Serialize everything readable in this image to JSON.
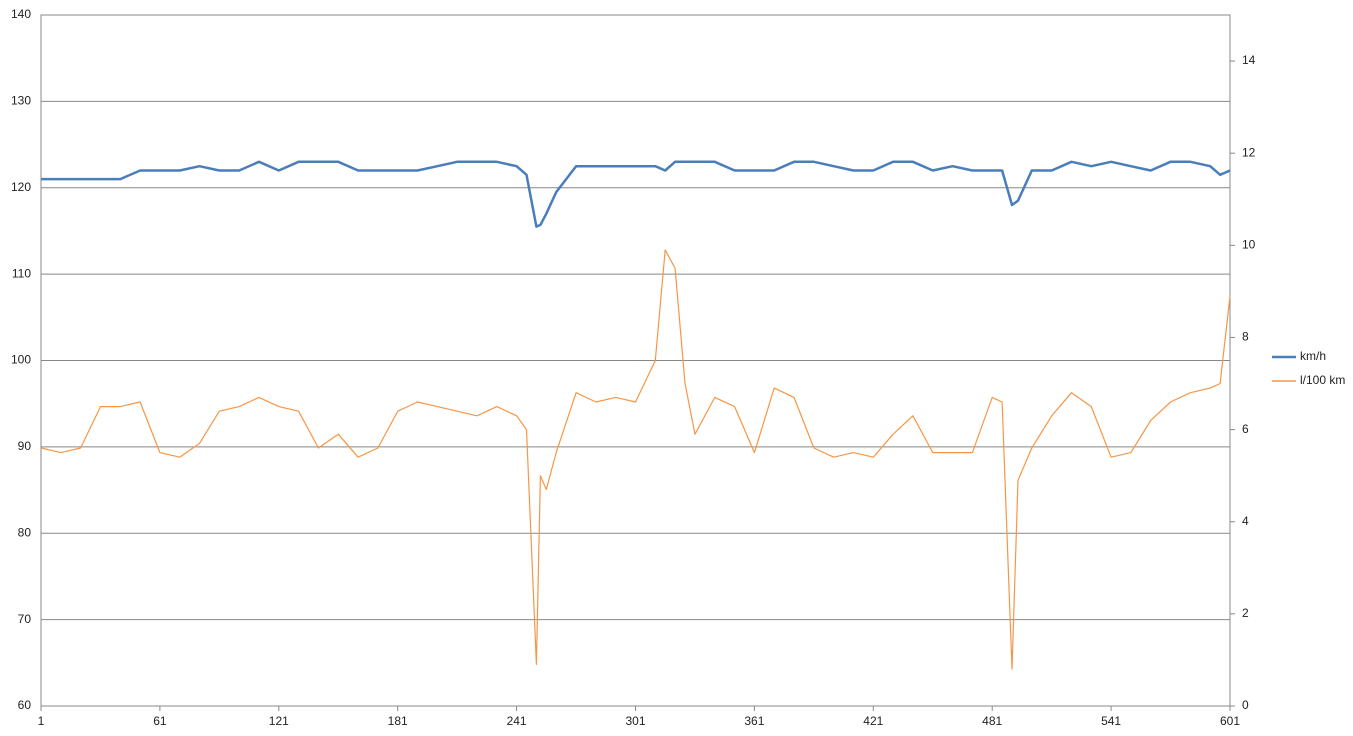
{
  "chart_data": {
    "type": "line",
    "x": [
      1,
      11,
      21,
      31,
      41,
      51,
      61,
      71,
      81,
      91,
      101,
      111,
      121,
      131,
      141,
      151,
      161,
      171,
      181,
      191,
      201,
      211,
      221,
      231,
      241,
      246,
      251,
      253,
      256,
      261,
      271,
      281,
      291,
      301,
      311,
      316,
      321,
      326,
      331,
      341,
      351,
      361,
      371,
      381,
      391,
      401,
      411,
      421,
      431,
      441,
      451,
      461,
      471,
      481,
      486,
      491,
      494,
      501,
      511,
      521,
      531,
      541,
      551,
      561,
      571,
      581,
      591,
      596,
      601
    ],
    "xlim": [
      1,
      601
    ],
    "xticks": [
      1,
      61,
      121,
      181,
      241,
      301,
      361,
      421,
      481,
      541,
      601
    ],
    "ylim": [
      60,
      140
    ],
    "yticks": [
      60,
      70,
      80,
      90,
      100,
      110,
      120,
      130,
      140
    ],
    "y2lim": [
      0,
      15
    ],
    "y2ticks": [
      0,
      2,
      4,
      6,
      8,
      10,
      12,
      14
    ],
    "grid": true,
    "legend": "right",
    "series": [
      {
        "name": "km/h",
        "color": "#4a7ebb",
        "values": [
          121,
          121,
          121,
          121,
          121,
          122,
          122,
          122,
          122.5,
          122,
          122,
          123,
          122,
          123,
          123,
          123,
          122,
          122,
          122,
          122,
          122.5,
          123,
          123,
          123,
          122.5,
          121.5,
          115.5,
          115.7,
          117,
          119.5,
          122.5,
          122.5,
          122.5,
          122.5,
          122.5,
          122,
          123,
          123,
          123,
          123,
          122,
          122,
          122,
          123,
          123,
          122.5,
          122,
          122,
          123,
          123,
          122,
          122.5,
          122,
          122,
          122,
          118,
          118.5,
          122,
          122,
          123,
          122.5,
          123,
          122.5,
          122,
          123,
          123,
          122.5,
          121.5,
          122
        ]
      },
      {
        "name": "l/100 km",
        "color": "#f79646",
        "axis": "y2",
        "values": [
          5.6,
          5.5,
          5.6,
          6.5,
          6.5,
          6.6,
          5.5,
          5.4,
          5.7,
          6.4,
          6.5,
          6.7,
          6.5,
          6.4,
          5.6,
          5.9,
          5.4,
          5.6,
          6.4,
          6.6,
          6.5,
          6.4,
          6.3,
          6.5,
          6.3,
          6.0,
          0.9,
          5.0,
          4.7,
          5.5,
          6.8,
          6.6,
          6.7,
          6.6,
          7.5,
          9.9,
          9.5,
          7.0,
          5.9,
          6.7,
          6.5,
          5.5,
          6.9,
          6.7,
          5.6,
          5.4,
          5.5,
          5.4,
          5.9,
          6.3,
          5.5,
          5.5,
          5.5,
          6.7,
          6.6,
          0.8,
          4.9,
          5.6,
          6.3,
          6.8,
          6.5,
          5.4,
          5.5,
          6.2,
          6.6,
          6.8,
          6.9,
          7.0,
          8.9
        ]
      }
    ]
  }
}
